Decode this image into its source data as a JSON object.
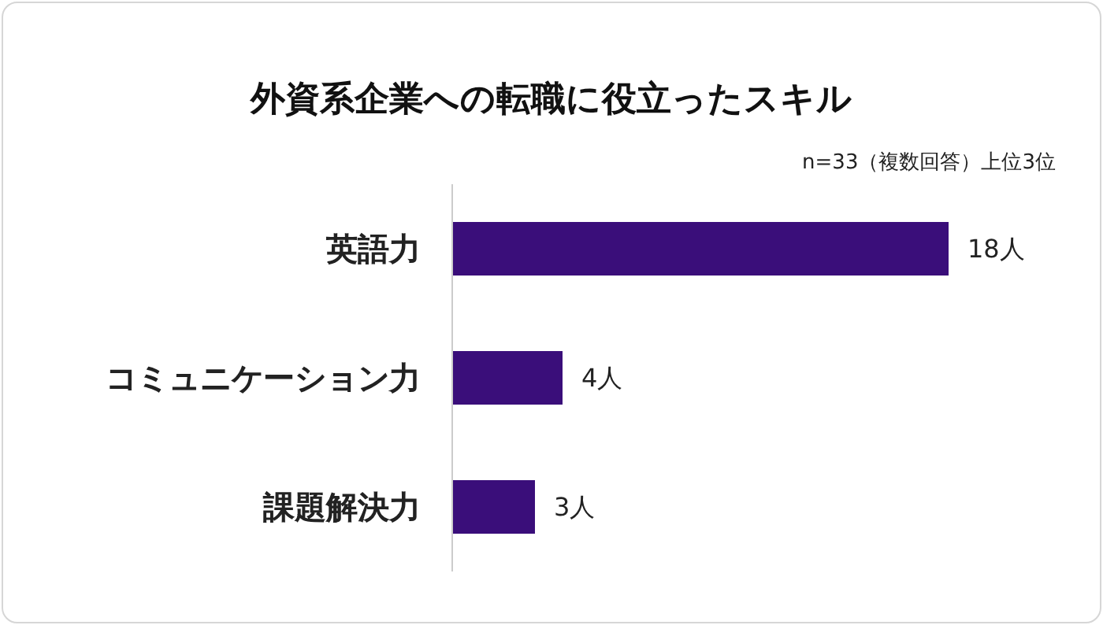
{
  "chart_data": {
    "type": "bar",
    "orientation": "horizontal",
    "title": "外資系企業への転職に役立ったスキル",
    "annotations": [
      "n=33（複数回答）上位3位"
    ],
    "categories": [
      "英語力",
      "コミュニケーション力",
      "課題解決力"
    ],
    "values": [
      18,
      4,
      3
    ],
    "color": "#3a0e7a",
    "value_labels": [
      "18人",
      "4人",
      "3人"
    ]
  }
}
